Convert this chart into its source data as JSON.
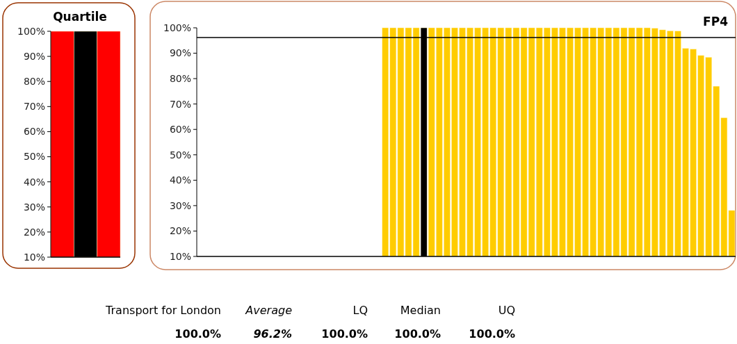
{
  "chart_data": [
    {
      "type": "bar",
      "title": "Quartile",
      "categories": [
        null,
        null,
        null
      ],
      "values": [
        100,
        100,
        100
      ],
      "colors": [
        "#ff0000",
        "#000000",
        "#ff0000"
      ],
      "ylim": [
        10,
        100
      ],
      "yticks": [
        {
          "value": 10,
          "label": "10%"
        },
        {
          "value": 20,
          "label": "20%"
        },
        {
          "value": 30,
          "label": "30%"
        },
        {
          "value": 40,
          "label": "40%"
        },
        {
          "value": 50,
          "label": "50%"
        },
        {
          "value": 60,
          "label": "60%"
        },
        {
          "value": 70,
          "label": "70%"
        },
        {
          "value": 80,
          "label": "80%"
        },
        {
          "value": 90,
          "label": "90%"
        },
        {
          "value": 100,
          "label": "100%"
        }
      ]
    },
    {
      "type": "bar",
      "title": "FP4",
      "categories": [
        null,
        null,
        null,
        null,
        null,
        null,
        null,
        null,
        null,
        null,
        null,
        null,
        null,
        null,
        null,
        null,
        null,
        null,
        null,
        null,
        null,
        null,
        null,
        null,
        null,
        null,
        null,
        null,
        null,
        null,
        null,
        null,
        null,
        null,
        null,
        null,
        null,
        null,
        null,
        null,
        null,
        null,
        null,
        null,
        null,
        null,
        null,
        null,
        null,
        null,
        null,
        null,
        null,
        null,
        null,
        null,
        null,
        null,
        null,
        null,
        null,
        null,
        null,
        null,
        null,
        null,
        null,
        null,
        null,
        null
      ],
      "values": [
        null,
        null,
        null,
        null,
        null,
        null,
        null,
        null,
        null,
        null,
        null,
        null,
        null,
        null,
        null,
        null,
        null,
        null,
        null,
        null,
        null,
        null,
        null,
        null,
        100,
        100,
        100,
        100,
        100,
        100,
        100,
        100,
        100,
        100,
        100,
        100,
        100,
        100,
        100,
        100,
        100,
        100,
        100,
        100,
        100,
        100,
        100,
        100,
        100,
        100,
        100,
        100,
        100,
        100,
        100,
        100,
        100,
        100,
        100,
        99.8,
        99.2,
        98.8,
        98.7,
        91.9,
        91.6,
        89.1,
        88.4,
        77.0,
        64.6,
        28.1
      ],
      "colors": [
        null,
        null,
        null,
        null,
        null,
        null,
        null,
        null,
        null,
        null,
        null,
        null,
        null,
        null,
        null,
        null,
        null,
        null,
        null,
        null,
        null,
        null,
        null,
        null,
        "#ffcc00",
        "#ffcc00",
        "#ffcc00",
        "#ffcc00",
        "#ffcc00",
        "#000000",
        "#ffcc00",
        "#ffcc00",
        "#ffcc00",
        "#ffcc00",
        "#ffcc00",
        "#ffcc00",
        "#ffcc00",
        "#ffcc00",
        "#ffcc00",
        "#ffcc00",
        "#ffcc00",
        "#ffcc00",
        "#ffcc00",
        "#ffcc00",
        "#ffcc00",
        "#ffcc00",
        "#ffcc00",
        "#ffcc00",
        "#ffcc00",
        "#ffcc00",
        "#ffcc00",
        "#ffcc00",
        "#ffcc00",
        "#ffcc00",
        "#ffcc00",
        "#ffcc00",
        "#ffcc00",
        "#ffcc00",
        "#ffcc00",
        "#ffcc00",
        "#ffcc00",
        "#ffcc00",
        "#ffcc00",
        "#ffcc00",
        "#ffcc00",
        "#ffcc00",
        "#ffcc00",
        "#ffcc00",
        "#ffcc00",
        "#ffcc00"
      ],
      "ylim": [
        10,
        100
      ],
      "yticks": [
        {
          "value": 10,
          "label": "10%"
        },
        {
          "value": 20,
          "label": "20%"
        },
        {
          "value": 30,
          "label": "30%"
        },
        {
          "value": 40,
          "label": "40%"
        },
        {
          "value": 50,
          "label": "50%"
        },
        {
          "value": 60,
          "label": "60%"
        },
        {
          "value": 70,
          "label": "70%"
        },
        {
          "value": 80,
          "label": "80%"
        },
        {
          "value": 90,
          "label": "90%"
        },
        {
          "value": 100,
          "label": "100%"
        }
      ],
      "ref_lines": [
        {
          "axis": "y",
          "value": 96.2,
          "color": "#000000"
        }
      ],
      "annotations": [
        "Transport for London",
        "Average",
        "LQ",
        "Median",
        "UQ",
        "100.0%",
        "96.2%",
        "100.0%",
        "100.0%",
        "100.0%"
      ]
    }
  ]
}
